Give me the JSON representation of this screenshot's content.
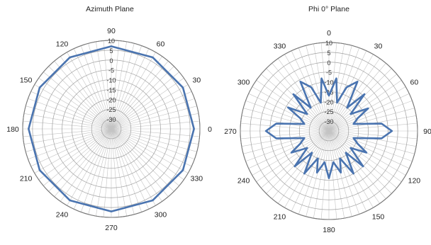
{
  "chart_data": [
    {
      "type": "polar-line",
      "title": "Azimuth Plane",
      "angle_direction": "counter-clockwise",
      "angle_zero": "right",
      "angle_labels": [
        "0",
        "30",
        "60",
        "90",
        "120",
        "150",
        "180",
        "210",
        "240",
        "270",
        "300",
        "330"
      ],
      "radial_labels": [
        "10",
        "5",
        "0",
        "-5",
        "-10",
        "-15",
        "-20",
        "-25",
        "-30"
      ],
      "rlim": [
        -35,
        10
      ],
      "grid": true,
      "series_color": "#4a74b0",
      "series": [
        {
          "angles": [
            0,
            30,
            60,
            90,
            120,
            150,
            180,
            210,
            240,
            270,
            300,
            330,
            360
          ],
          "values": [
            7,
            7,
            7,
            7,
            7,
            7,
            7,
            7,
            7,
            7,
            7,
            7,
            7
          ]
        }
      ]
    },
    {
      "type": "polar-line",
      "title": "Phi 0° Plane",
      "angle_direction": "clockwise",
      "angle_zero": "top",
      "angle_labels": [
        "0",
        "30",
        "60",
        "90",
        "120",
        "150",
        "180",
        "210",
        "240",
        "270",
        "300",
        "330"
      ],
      "radial_labels": [
        "10",
        "5",
        "0",
        "-5",
        "-10",
        "-15",
        "-20",
        "-25",
        "-30"
      ],
      "rlim": [
        -35,
        10
      ],
      "grid": true,
      "series_color": "#4a74b0",
      "series": [
        {
          "angles": [
            0,
            8,
            16,
            22,
            30,
            38,
            44,
            52,
            60,
            66,
            74,
            82,
            90,
            98,
            106,
            114,
            120,
            128,
            136,
            142,
            150,
            158,
            164,
            172,
            180,
            188,
            196,
            202,
            210,
            218,
            224,
            232,
            240,
            246,
            254,
            262,
            270,
            278,
            286,
            294,
            300,
            308,
            316,
            322,
            330,
            338,
            344,
            352,
            360
          ],
          "values": [
            -17,
            -8,
            -20,
            -11,
            -6,
            -20,
            -9,
            -21,
            -12,
            -19,
            -22,
            -8,
            -3,
            -8,
            -22,
            -19,
            -13,
            -21,
            -10,
            -21,
            -10,
            -20,
            -13,
            -19,
            -11,
            -19,
            -13,
            -20,
            -10,
            -21,
            -10,
            -21,
            -13,
            -19,
            -22,
            -8,
            -3,
            -8,
            -22,
            -19,
            -11,
            -21,
            -9,
            -20,
            -6,
            -11,
            -20,
            -8,
            -17
          ]
        }
      ]
    }
  ]
}
